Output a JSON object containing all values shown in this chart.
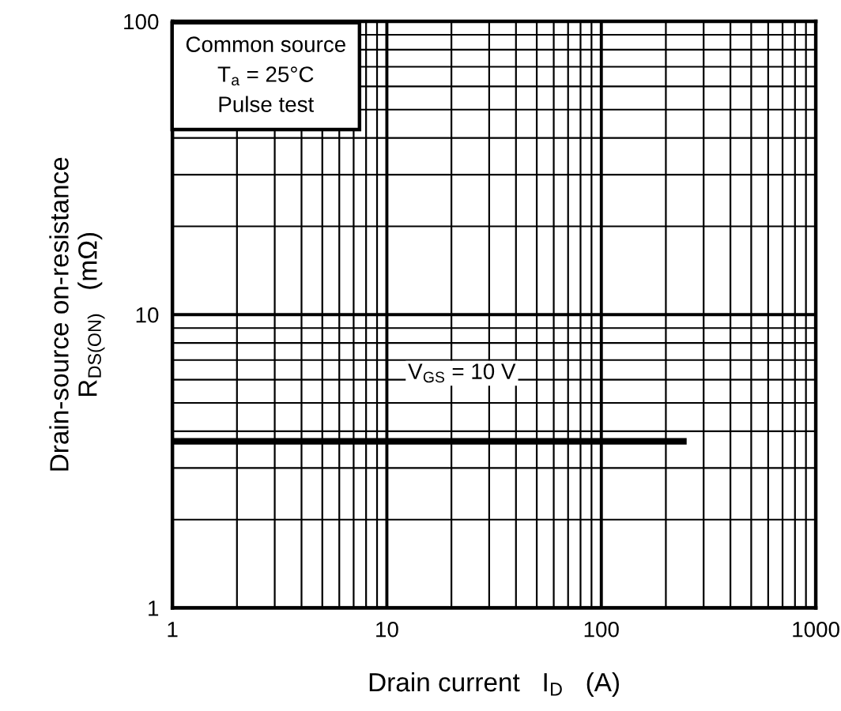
{
  "chart_data": {
    "type": "line",
    "xlabel": "Drain current   I$_{D}$   (A)",
    "ylabel": "Drain-source on-resistance\nR$_{DS(ON)}$   (mΩ)",
    "series": [
      {
        "x": [
          1,
          250
        ],
        "values": [
          3.7,
          3.7
        ],
        "color": "#000000"
      }
    ],
    "log": "xy",
    "xlim": [
      1,
      1000
    ],
    "ylim": [
      1,
      100
    ],
    "xticks": [
      1,
      10,
      100,
      1000
    ],
    "yticks": [
      1,
      10,
      100
    ],
    "grid": true,
    "marker": "none",
    "line_style": "solid",
    "annotations": [
      "Common source\nT$_{a}$ = 25°C\nPulse test",
      "V$_{GS}$ = 10 V"
    ]
  }
}
